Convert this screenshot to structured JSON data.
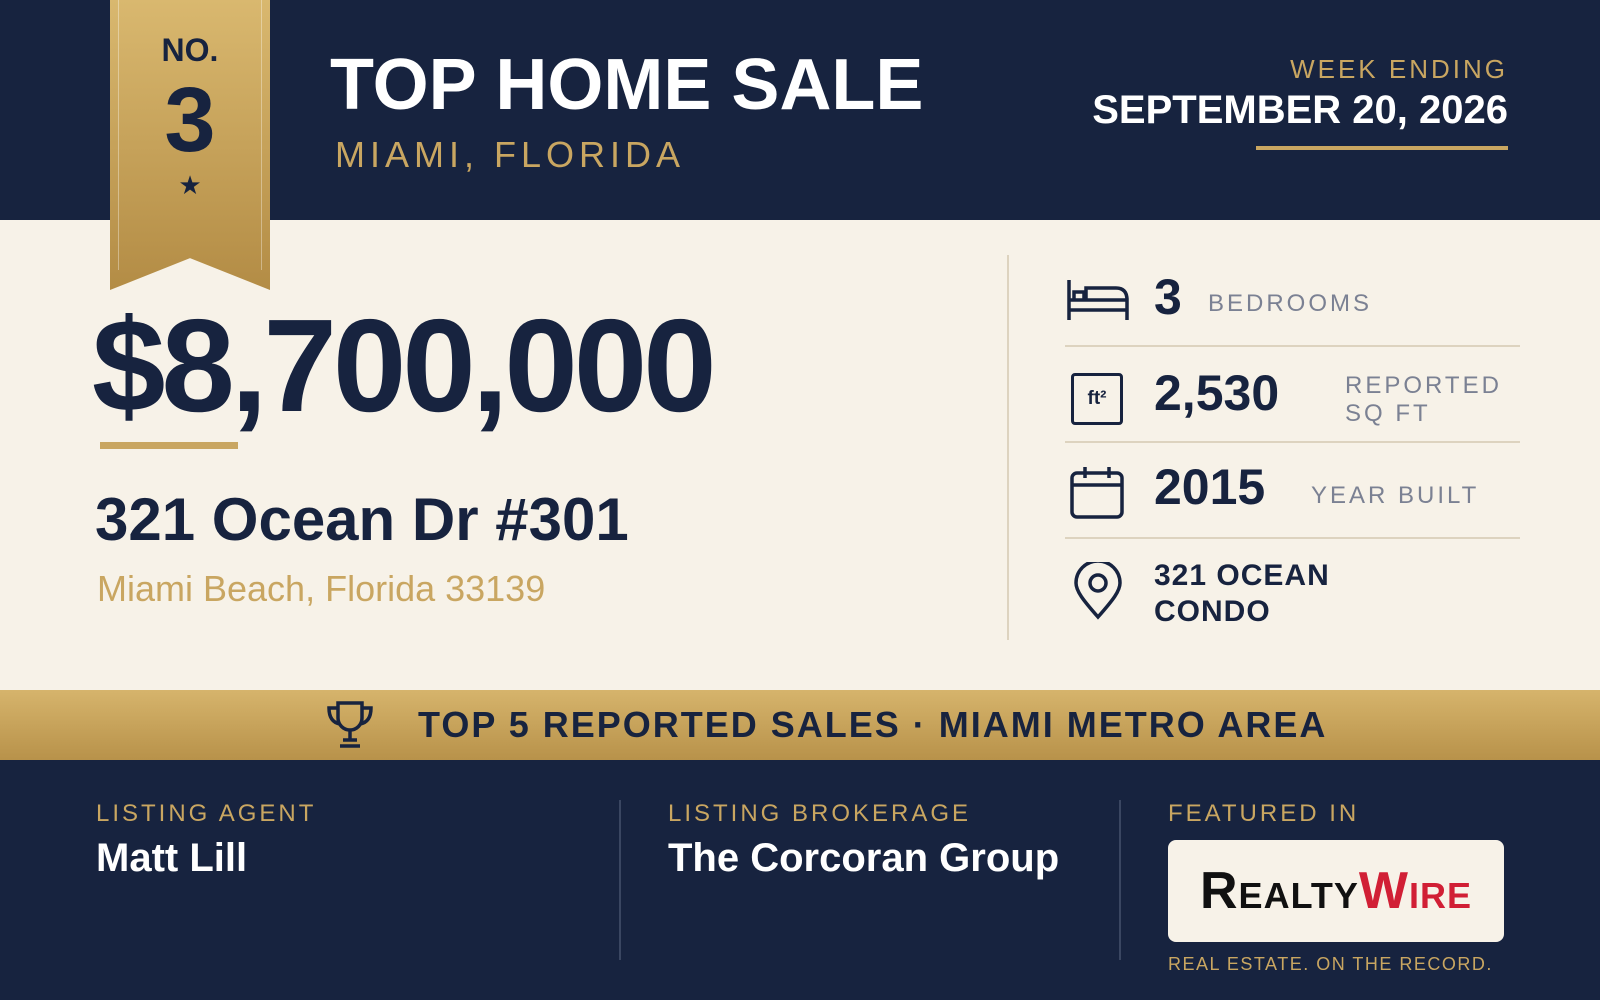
{
  "ribbon": {
    "prefix": "NO.",
    "rank": "3"
  },
  "header": {
    "title": "TOP HOME SALE",
    "location": "MIAMI, FLORIDA",
    "week_label": "WEEK ENDING",
    "week_date": "SEPTEMBER 20, 2026"
  },
  "sale": {
    "price": "$8,700,000",
    "address": "321 Ocean Dr #301",
    "city": "Miami Beach, Florida 33139"
  },
  "stats": [
    {
      "value": "3",
      "label": "BEDROOMS"
    },
    {
      "icon": "ft²",
      "value": "2,530",
      "label": "REPORTED SQ FT"
    },
    {
      "value": "2015",
      "label": "YEAR BUILT"
    },
    {
      "value": "321 OCEAN CONDO"
    }
  ],
  "banner": "TOP 5 REPORTED SALES · MIAMI METRO AREA",
  "footer": {
    "agent_label": "LISTING AGENT",
    "agent": "Matt Lill",
    "brokerage_label": "LISTING BROKERAGE",
    "brokerage": "The Corcoran Group",
    "featured_label": "FEATURED IN",
    "logo_first": "Realty",
    "logo_second": "Wire",
    "tagline": "REAL ESTATE. ON THE RECORD."
  }
}
